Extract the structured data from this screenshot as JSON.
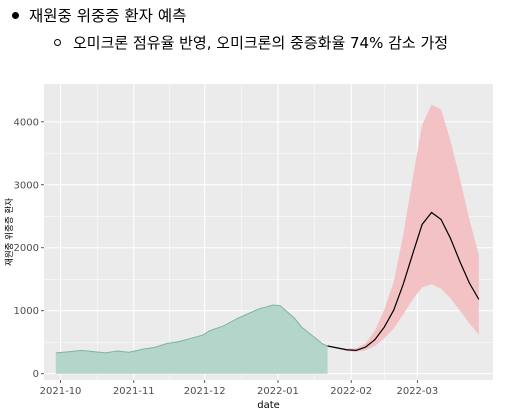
{
  "heading": {
    "main_bullet": "재원중 위중증 환자 예측",
    "sub_bullet": "오미크론 점유율 반영, 오미크론의 중증화율 74% 감소 가정"
  },
  "chart_data": {
    "type": "area",
    "title": "",
    "xlabel": "date",
    "ylabel": "재원중 위중증 환자",
    "ylim": [
      -100,
      4600
    ],
    "yticks": [
      0,
      1000,
      2000,
      3000,
      4000
    ],
    "ytick_labels": [
      "0",
      "1000",
      "2000",
      "3000",
      "4000"
    ],
    "xlim": [
      "2021-09-24",
      "2022-04-02"
    ],
    "xticks": [
      "2021-10-01",
      "2021-11-01",
      "2021-12-01",
      "2022-01-01",
      "2022-02-01",
      "2022-03-01"
    ],
    "xtick_labels": [
      "2021-10",
      "2021-11",
      "2021-12",
      "2022-01",
      "2022-02",
      "2022-03"
    ],
    "grid": true,
    "legend": "none",
    "colors": {
      "panel_bg": "#EBEBEB",
      "grid": "#FFFFFF",
      "observed_fill": "#B4D5C9",
      "observed_line": "#7DB5A2",
      "forecast_band": "#F2C2C5",
      "forecast_line": "#000000"
    },
    "series": [
      {
        "kind": "observed",
        "x": [
          "2021-09-29",
          "2021-10-05",
          "2021-10-10",
          "2021-10-15",
          "2021-10-20",
          "2021-10-25",
          "2021-10-30",
          "2021-11-05",
          "2021-11-10",
          "2021-11-15",
          "2021-11-20",
          "2021-11-25",
          "2021-11-30",
          "2021-12-03",
          "2021-12-06",
          "2021-12-09",
          "2021-12-12",
          "2021-12-15",
          "2021-12-18",
          "2021-12-21",
          "2021-12-24",
          "2021-12-27",
          "2021-12-30",
          "2022-01-02",
          "2022-01-05",
          "2022-01-08",
          "2022-01-11",
          "2022-01-14",
          "2022-01-17",
          "2022-01-20",
          "2022-01-22"
        ],
        "y": [
          330,
          350,
          370,
          350,
          330,
          360,
          340,
          390,
          420,
          480,
          510,
          560,
          610,
          680,
          720,
          760,
          820,
          880,
          930,
          980,
          1030,
          1060,
          1090,
          1080,
          980,
          880,
          740,
          650,
          560,
          470,
          440
        ]
      },
      {
        "kind": "forecast",
        "x": [
          "2022-01-22",
          "2022-01-26",
          "2022-01-30",
          "2022-02-03",
          "2022-02-07",
          "2022-02-11",
          "2022-02-15",
          "2022-02-19",
          "2022-02-23",
          "2022-02-27",
          "2022-03-03",
          "2022-03-07",
          "2022-03-11",
          "2022-03-15",
          "2022-03-19",
          "2022-03-23",
          "2022-03-27"
        ],
        "y": [
          440,
          410,
          380,
          370,
          420,
          540,
          740,
          1010,
          1420,
          1900,
          2370,
          2560,
          2450,
          2150,
          1780,
          1440,
          1180
        ],
        "lower": [
          440,
          400,
          360,
          345,
          370,
          440,
          560,
          720,
          940,
          1180,
          1370,
          1420,
          1350,
          1200,
          1000,
          800,
          620
        ],
        "upper": [
          440,
          420,
          400,
          400,
          480,
          680,
          1020,
          1460,
          2200,
          3100,
          3950,
          4270,
          4200,
          3700,
          3100,
          2450,
          1880
        ]
      }
    ]
  }
}
